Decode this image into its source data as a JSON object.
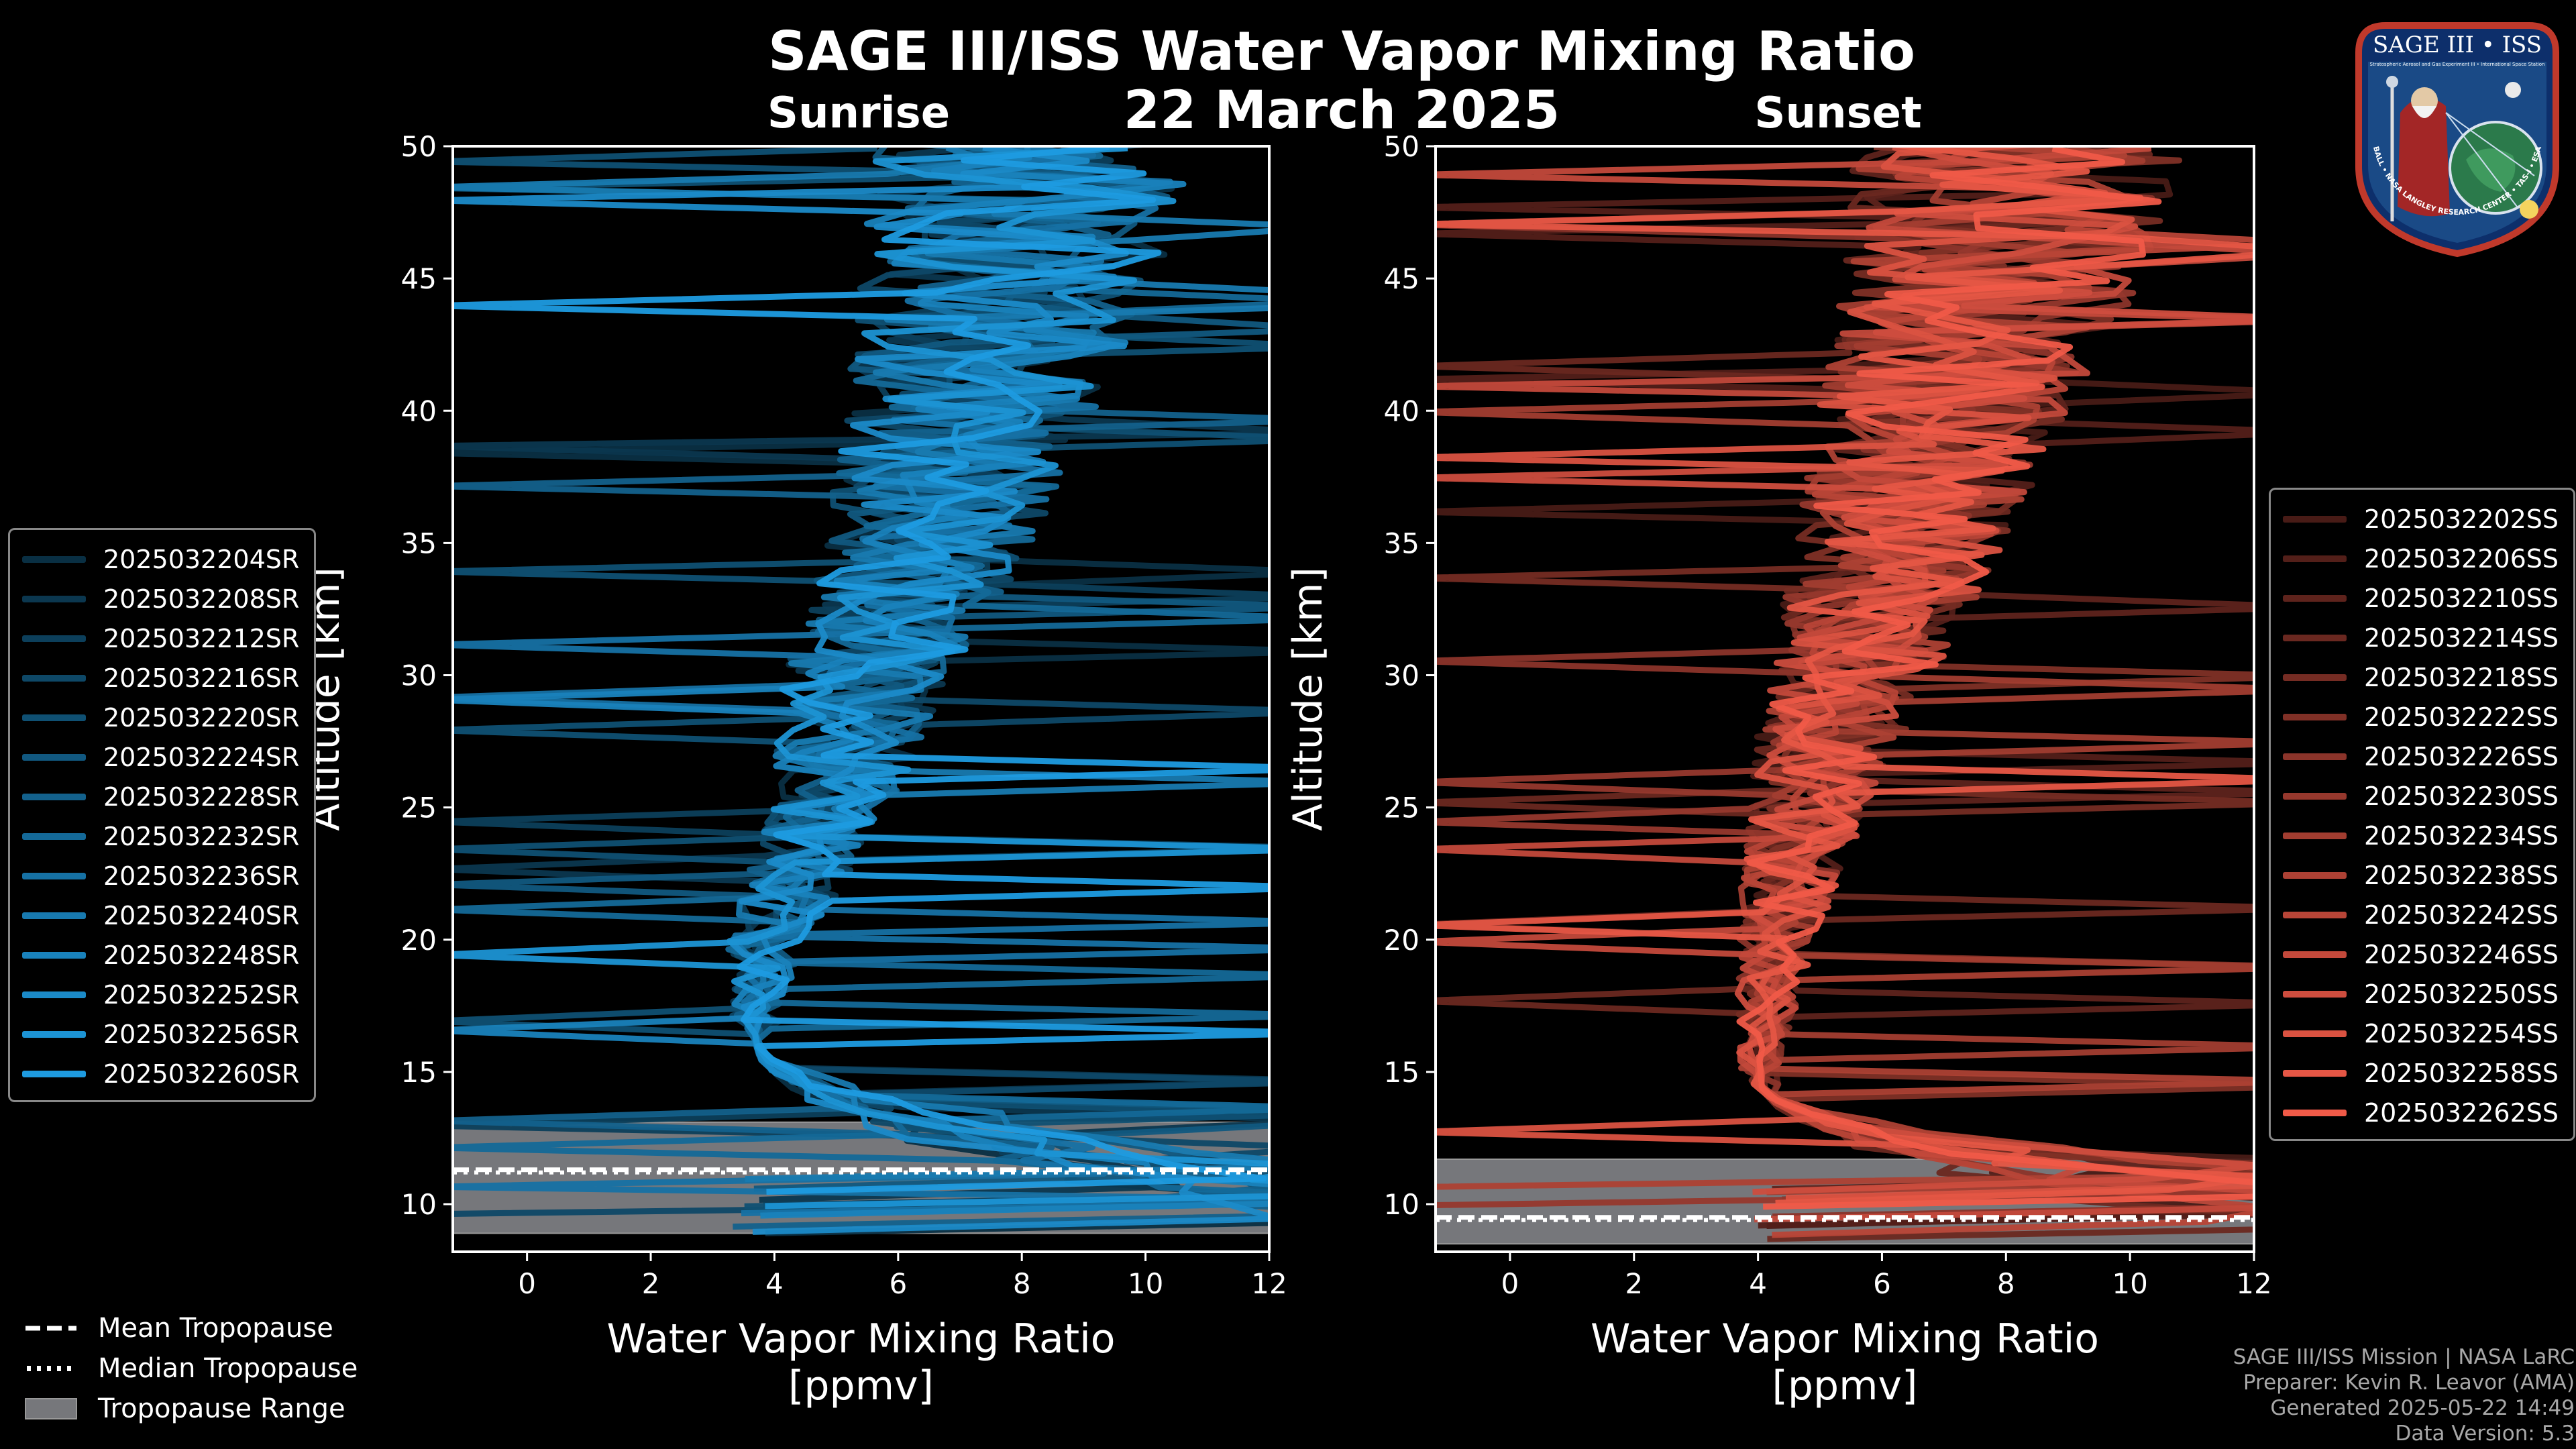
{
  "figure": {
    "title": "SAGE III/ISS Water Vapor Mixing Ratio",
    "date": "22 March 2025",
    "sunrise_label": "Sunrise",
    "sunset_label": "Sunset"
  },
  "colors": {
    "sunrise": "#1e9be0",
    "sunset": "#f05a48",
    "tropopause_fill": "#76777b",
    "background": "#000000"
  },
  "chart_data": [
    {
      "type": "line",
      "panel": "Sunrise",
      "xlabel": "Water Vapor Mixing Ratio\n[ppmv]",
      "xlabel_line1": "Water Vapor Mixing Ratio",
      "xlabel_line2": "[ppmv]",
      "ylabel": "Altitude [km]",
      "xlim": [
        -1.2,
        12
      ],
      "ylim": [
        8.2,
        50
      ],
      "xticks": [
        0,
        2,
        4,
        6,
        8,
        10,
        12
      ],
      "yticks": [
        10,
        15,
        20,
        25,
        30,
        35,
        40,
        45,
        50
      ],
      "series": [
        "2025032204SR",
        "2025032208SR",
        "2025032212SR",
        "2025032216SR",
        "2025032220SR",
        "2025032224SR",
        "2025032228SR",
        "2025032232SR",
        "2025032236SR",
        "2025032240SR",
        "2025032248SR",
        "2025032252SR",
        "2025032256SR",
        "2025032260SR"
      ],
      "mean_tropopause": 11.3,
      "median_tropopause": 11.2,
      "tropopause_range": [
        8.9,
        13.1
      ],
      "profile_shape": [
        [
          15,
          3.6
        ],
        [
          20,
          3.9
        ],
        [
          25,
          4.9
        ],
        [
          30,
          5.5
        ],
        [
          35,
          6.5
        ],
        [
          40,
          7.2
        ],
        [
          45,
          7.8
        ],
        [
          50,
          8.2
        ]
      ]
    },
    {
      "type": "line",
      "panel": "Sunset",
      "xlabel": "Water Vapor Mixing Ratio\n[ppmv]",
      "xlabel_line1": "Water Vapor Mixing Ratio",
      "xlabel_line2": "[ppmv]",
      "ylabel": "Altitude [km]",
      "xlim": [
        -1.2,
        12
      ],
      "ylim": [
        8.2,
        50
      ],
      "xticks": [
        0,
        2,
        4,
        6,
        8,
        10,
        12
      ],
      "yticks": [
        10,
        15,
        20,
        25,
        30,
        35,
        40,
        45,
        50
      ],
      "series": [
        "2025032202SS",
        "2025032206SS",
        "2025032210SS",
        "2025032214SS",
        "2025032218SS",
        "2025032222SS",
        "2025032226SS",
        "2025032230SS",
        "2025032234SS",
        "2025032238SS",
        "2025032242SS",
        "2025032246SS",
        "2025032250SS",
        "2025032254SS",
        "2025032258SS",
        "2025032262SS"
      ],
      "mean_tropopause": 9.5,
      "median_tropopause": 9.4,
      "tropopause_range": [
        8.5,
        11.7
      ],
      "profile_shape": [
        [
          13,
          4.2
        ],
        [
          15,
          4.0
        ],
        [
          20,
          4.3
        ],
        [
          25,
          4.8
        ],
        [
          30,
          5.5
        ],
        [
          35,
          6.3
        ],
        [
          40,
          7.0
        ],
        [
          45,
          7.8
        ],
        [
          50,
          8.3
        ]
      ]
    }
  ],
  "tropopause_legend": {
    "mean": "Mean Tropopause",
    "median": "Median Tropopause",
    "range": "Tropopause Range"
  },
  "credits": {
    "line1": "SAGE III/ISS Mission | NASA LaRC",
    "line2": "Preparer: Kevin R. Leavor (AMA)",
    "line3": "Generated 2025-05-22 14:49",
    "line4": "Data Version: 5.3"
  },
  "logo": {
    "title": "SAGE III • ISS",
    "subtitle": "Stratospheric Aerosol and Gas Experiment III • International Space Station",
    "ring_text": "BALL • NASA LANGLEY RESEARCH CENTER • TAS-I • ESA"
  }
}
